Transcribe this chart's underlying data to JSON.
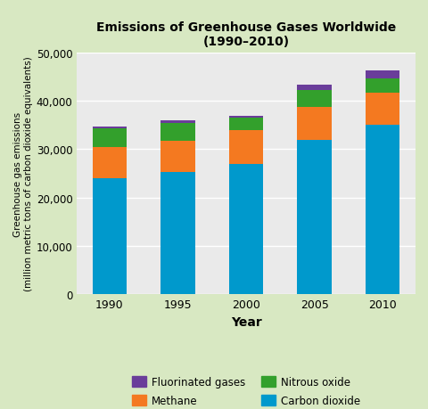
{
  "years": [
    "1990",
    "1995",
    "2000",
    "2005",
    "2010"
  ],
  "co2": [
    24000,
    25200,
    27000,
    32000,
    35000
  ],
  "methane": [
    6500,
    6500,
    7000,
    6800,
    6700
  ],
  "nitrous": [
    3800,
    3800,
    2500,
    3500,
    3000
  ],
  "fluorinated": [
    400,
    400,
    400,
    1000,
    1500
  ],
  "colors": {
    "co2": "#0099CC",
    "methane": "#F47920",
    "nitrous": "#33A02C",
    "fluorinated": "#6A3D9A"
  },
  "title_line1": "Emissions of Greenhouse Gases Worldwide",
  "title_line2": "(1990–2010)",
  "xlabel": "Year",
  "ylabel": "Greenhouse gas emissions\n(million metric tons of carbon dioxide equivalents)",
  "ylim": [
    0,
    50000
  ],
  "yticks": [
    0,
    10000,
    20000,
    30000,
    40000,
    50000
  ],
  "ytick_labels": [
    "0",
    "10,000",
    "20,000",
    "30,000",
    "40,000",
    "50,000"
  ],
  "background_color": "#d8e8c2",
  "plot_background": "#eaeaea",
  "legend": [
    {
      "label": "Fluorinated gases",
      "color": "#6A3D9A"
    },
    {
      "label": "Methane",
      "color": "#F47920"
    },
    {
      "label": "Nitrous oxide",
      "color": "#33A02C"
    },
    {
      "label": "Carbon dioxide",
      "color": "#0099CC"
    }
  ]
}
